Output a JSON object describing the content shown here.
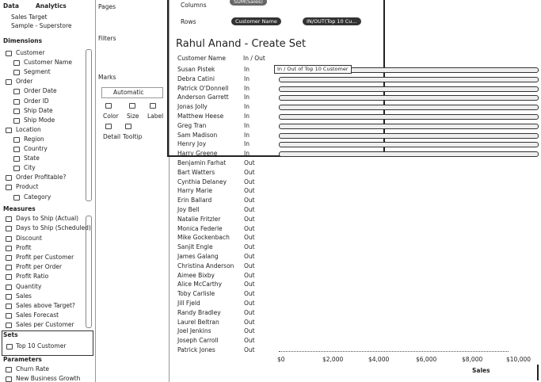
{
  "left_pane": {
    "tabs": [
      "Data",
      "Analytics"
    ],
    "data_source": {
      "name": "Sales Target",
      "subtitle": "Sample - Superstore"
    },
    "dimensions": {
      "title": "Dimensions",
      "items": [
        {
          "label": "Customer",
          "children": [
            "Customer Name",
            "Segment"
          ]
        },
        {
          "label": "Order",
          "children": [
            "Order Date",
            "Order ID",
            "Ship Date",
            "Ship Mode"
          ]
        },
        {
          "label": "Location",
          "children": [
            "Region",
            "Country",
            "State",
            "City"
          ]
        },
        {
          "label": "Order Profitable?",
          "children": []
        },
        {
          "label": "Product",
          "children": [
            "Category"
          ]
        }
      ]
    },
    "measures": {
      "title": "Measures",
      "items": [
        "Days to Ship (Actual)",
        "Days to Ship (Scheduled)",
        "Discount",
        "Profit",
        "Profit per Customer",
        "Profit per Order",
        "Profit Ratio",
        "Quantity",
        "Sales",
        "Sales above Target?",
        "Sales Forecast",
        "Sales per Customer"
      ]
    },
    "sets": {
      "title": "Sets",
      "items": [
        "Top 10 Customer"
      ]
    },
    "parameters": {
      "title": "Parameters",
      "items": [
        "Churn Rate",
        "New Business Growth"
      ]
    }
  },
  "cards": {
    "pages": "Pages",
    "filters": "Filters",
    "marks": {
      "title": "Marks",
      "mark_type": "Automatic",
      "buttons": [
        "Color",
        "Size",
        "Label",
        "Detail",
        "Tooltip"
      ]
    }
  },
  "shelves": {
    "columns": {
      "label": "Columns",
      "pills": [
        "SUM(Sales)"
      ]
    },
    "rows": {
      "label": "Rows",
      "pills": [
        "Customer Name",
        "IN/OUT(Top 10 Cu..."
      ]
    }
  },
  "view": {
    "title": "Rahul Anand - Create Set",
    "headers": [
      "Customer Name",
      "In / Out"
    ],
    "tooltip": "In / Out of Top 10 Customer",
    "rows": [
      [
        "Susan Pistek",
        "In"
      ],
      [
        "Debra Catini",
        "In"
      ],
      [
        "Patrick O'Donnell",
        "In"
      ],
      [
        "Anderson Garrett",
        "In"
      ],
      [
        "Jonas Jolly",
        "In"
      ],
      [
        "Matthew Heese",
        "In"
      ],
      [
        "Greg Tran",
        "In"
      ],
      [
        "Sam Madison",
        "In"
      ],
      [
        "Henry Joy",
        "In"
      ],
      [
        "Harry Greene",
        "In"
      ],
      [
        "Benjamin Farhat",
        "Out"
      ],
      [
        "Bart Watters",
        "Out"
      ],
      [
        "Cynthia Delaney",
        "Out"
      ],
      [
        "Harry Marie",
        "Out"
      ],
      [
        "Erin Ballard",
        "Out"
      ],
      [
        "Joy Bell",
        "Out"
      ],
      [
        "Natalie Fritzler",
        "Out"
      ],
      [
        "Monica Federle",
        "Out"
      ],
      [
        "Mike Gockenbach",
        "Out"
      ],
      [
        "Sanjit Engle",
        "Out"
      ],
      [
        "James Galang",
        "Out"
      ],
      [
        "Christina Anderson",
        "Out"
      ],
      [
        "Aimee Bixby",
        "Out"
      ],
      [
        "Alice McCarthy",
        "Out"
      ],
      [
        "Toby Carlisle",
        "Out"
      ],
      [
        "Jill Fjeld",
        "Out"
      ],
      [
        "Randy Bradley",
        "Out"
      ],
      [
        "Laurel Beltran",
        "Out"
      ],
      [
        "Joel Jenkins",
        "Out"
      ],
      [
        "Joseph Carroll",
        "Out"
      ],
      [
        "Patrick Jones",
        "Out"
      ]
    ],
    "axis": {
      "ticks": [
        "$0",
        "$2,000",
        "$4,000",
        "$6,000",
        "$8,000",
        "$10,000"
      ],
      "title": "Sales"
    }
  }
}
